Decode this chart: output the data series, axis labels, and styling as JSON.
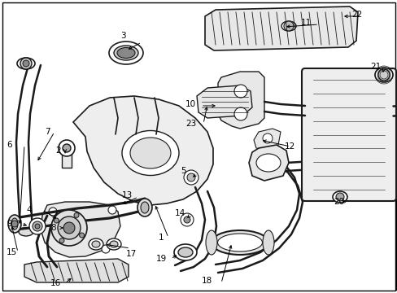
{
  "bg_color": "#ffffff",
  "line_color": "#1a1a1a",
  "fig_width": 4.89,
  "fig_height": 3.6,
  "dpi": 100,
  "fs": 7.5,
  "lw_main": 1.3,
  "lw_pipe": 1.8,
  "lw_thin": 0.7
}
